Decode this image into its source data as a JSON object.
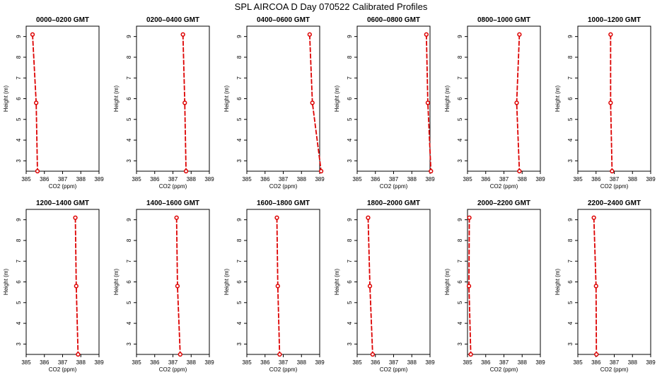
{
  "title": "SPL AIRCOA D  Day 070522  Calibrated Profiles",
  "colors": {
    "series": "#dd0000",
    "frame": "#000000"
  },
  "chart_data": [
    {
      "type": "line",
      "title": "0000–0200 GMT",
      "xlabel": "CO2 (ppm)",
      "ylabel": "Height (m)",
      "xlim": [
        385,
        389
      ],
      "ylim": [
        2.5,
        9.5
      ],
      "x_ticks": [
        385,
        386,
        387,
        388,
        389
      ],
      "y_ticks": [
        3,
        4,
        5,
        6,
        7,
        8,
        9
      ],
      "heights": [
        9.1,
        5.8,
        2.5
      ],
      "values": [
        385.35,
        385.55,
        385.62
      ]
    },
    {
      "type": "line",
      "title": "0200–0400 GMT",
      "xlabel": "CO2 (ppm)",
      "ylabel": "Height (m)",
      "xlim": [
        385,
        389
      ],
      "ylim": [
        2.5,
        9.5
      ],
      "x_ticks": [
        385,
        386,
        387,
        388,
        389
      ],
      "y_ticks": [
        3,
        4,
        5,
        6,
        7,
        8,
        9
      ],
      "heights": [
        9.1,
        5.8,
        2.5
      ],
      "values": [
        387.55,
        387.65,
        387.72
      ]
    },
    {
      "type": "line",
      "title": "0400–0600 GMT",
      "xlabel": "CO2 (ppm)",
      "ylabel": "Height (m)",
      "xlim": [
        385,
        389
      ],
      "ylim": [
        2.5,
        9.5
      ],
      "x_ticks": [
        385,
        386,
        387,
        388,
        389
      ],
      "y_ticks": [
        3,
        4,
        5,
        6,
        7,
        8,
        9
      ],
      "heights": [
        9.1,
        5.8,
        2.5
      ],
      "values": [
        388.45,
        388.6,
        389.08
      ]
    },
    {
      "type": "line",
      "title": "0600–0800 GMT",
      "xlabel": "CO2 (ppm)",
      "ylabel": "Height (m)",
      "xlim": [
        385,
        389
      ],
      "ylim": [
        2.5,
        9.5
      ],
      "x_ticks": [
        385,
        386,
        387,
        388,
        389
      ],
      "y_ticks": [
        3,
        4,
        5,
        6,
        7,
        8,
        9
      ],
      "heights": [
        9.1,
        5.8,
        2.5
      ],
      "values": [
        388.8,
        388.88,
        389.05
      ]
    },
    {
      "type": "line",
      "title": "0800–1000 GMT",
      "xlabel": "CO2 (ppm)",
      "ylabel": "Height (m)",
      "xlim": [
        385,
        389
      ],
      "ylim": [
        2.5,
        9.5
      ],
      "x_ticks": [
        385,
        386,
        387,
        388,
        389
      ],
      "y_ticks": [
        3,
        4,
        5,
        6,
        7,
        8,
        9
      ],
      "heights": [
        9.1,
        5.8,
        2.5
      ],
      "values": [
        387.85,
        387.7,
        387.85
      ]
    },
    {
      "type": "line",
      "title": "1000–1200 GMT",
      "xlabel": "CO2 (ppm)",
      "ylabel": "Height (m)",
      "xlim": [
        385,
        389
      ],
      "ylim": [
        2.5,
        9.5
      ],
      "x_ticks": [
        385,
        386,
        387,
        388,
        389
      ],
      "y_ticks": [
        3,
        4,
        5,
        6,
        7,
        8,
        9
      ],
      "heights": [
        9.1,
        5.8,
        2.5
      ],
      "values": [
        386.8,
        386.8,
        386.88
      ]
    },
    {
      "type": "line",
      "title": "1200–1400 GMT",
      "xlabel": "CO2 (ppm)",
      "ylabel": "Height (m)",
      "xlim": [
        385,
        389
      ],
      "ylim": [
        2.5,
        9.5
      ],
      "x_ticks": [
        385,
        386,
        387,
        388,
        389
      ],
      "y_ticks": [
        3,
        4,
        5,
        6,
        7,
        8,
        9
      ],
      "heights": [
        9.1,
        5.8,
        2.5
      ],
      "values": [
        387.7,
        387.75,
        387.85
      ]
    },
    {
      "type": "line",
      "title": "1400–1600 GMT",
      "xlabel": "CO2 (ppm)",
      "ylabel": "Height (m)",
      "xlim": [
        385,
        389
      ],
      "ylim": [
        2.5,
        9.5
      ],
      "x_ticks": [
        385,
        386,
        387,
        388,
        389
      ],
      "y_ticks": [
        3,
        4,
        5,
        6,
        7,
        8,
        9
      ],
      "heights": [
        9.1,
        5.8,
        2.5
      ],
      "values": [
        387.2,
        387.25,
        387.4
      ]
    },
    {
      "type": "line",
      "title": "1600–1800 GMT",
      "xlabel": "CO2 (ppm)",
      "ylabel": "Height (m)",
      "xlim": [
        385,
        389
      ],
      "ylim": [
        2.5,
        9.5
      ],
      "x_ticks": [
        385,
        386,
        387,
        388,
        389
      ],
      "y_ticks": [
        3,
        4,
        5,
        6,
        7,
        8,
        9
      ],
      "heights": [
        9.1,
        5.8,
        2.5
      ],
      "values": [
        386.65,
        386.7,
        386.8
      ]
    },
    {
      "type": "line",
      "title": "1800–2000 GMT",
      "xlabel": "CO2 (ppm)",
      "ylabel": "Height (m)",
      "xlim": [
        385,
        389
      ],
      "ylim": [
        2.5,
        9.5
      ],
      "x_ticks": [
        385,
        386,
        387,
        388,
        389
      ],
      "y_ticks": [
        3,
        4,
        5,
        6,
        7,
        8,
        9
      ],
      "heights": [
        9.1,
        5.8,
        2.5
      ],
      "values": [
        385.6,
        385.7,
        385.85
      ]
    },
    {
      "type": "line",
      "title": "2000–2200 GMT",
      "xlabel": "CO2 (ppm)",
      "ylabel": "Height (m)",
      "xlim": [
        385,
        389
      ],
      "ylim": [
        2.5,
        9.5
      ],
      "x_ticks": [
        385,
        386,
        387,
        388,
        389
      ],
      "y_ticks": [
        3,
        4,
        5,
        6,
        7,
        8,
        9
      ],
      "heights": [
        9.1,
        5.8,
        2.5
      ],
      "values": [
        385.1,
        385.08,
        385.18
      ]
    },
    {
      "type": "line",
      "title": "2200–2400 GMT",
      "xlabel": "CO2 (ppm)",
      "ylabel": "Height (m)",
      "xlim": [
        385,
        389
      ],
      "ylim": [
        2.5,
        9.5
      ],
      "x_ticks": [
        385,
        386,
        387,
        388,
        389
      ],
      "y_ticks": [
        3,
        4,
        5,
        6,
        7,
        8,
        9
      ],
      "heights": [
        9.1,
        5.8,
        2.5
      ],
      "values": [
        385.88,
        386.0,
        386.02
      ]
    }
  ]
}
